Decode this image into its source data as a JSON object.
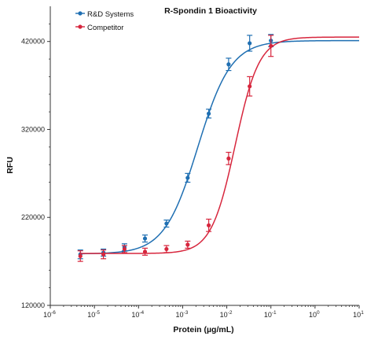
{
  "chart_data": {
    "type": "line",
    "title": "R-Spondin 1 Bioactivity",
    "xlabel": "Protein (µg/mL)",
    "ylabel": "RFU",
    "x_scale": "log",
    "xlim": [
      1e-06,
      10
    ],
    "ylim": [
      120000,
      460000
    ],
    "x_ticks": [
      1e-06,
      1e-05,
      0.0001,
      0.001,
      0.01,
      0.1,
      1,
      10
    ],
    "x_tick_labels": [
      {
        "base": "10",
        "exp": "-6"
      },
      {
        "base": "10",
        "exp": "-5"
      },
      {
        "base": "10",
        "exp": "-4"
      },
      {
        "base": "10",
        "exp": "-3"
      },
      {
        "base": "10",
        "exp": "-2"
      },
      {
        "base": "10",
        "exp": "-1"
      },
      {
        "base": "10",
        "exp": "0"
      },
      {
        "base": "10",
        "exp": "1"
      }
    ],
    "y_ticks": [
      120000,
      220000,
      320000,
      420000
    ],
    "y_tick_labels": [
      "120000",
      "220000",
      "320000",
      "420000"
    ],
    "legend_position": "top-left",
    "series": [
      {
        "name": "R&D Systems",
        "color": "#1f6fb2",
        "x": [
          4.8e-06,
          1.6e-05,
          4.8e-05,
          0.00014,
          0.00043,
          0.0013,
          0.0039,
          0.011,
          0.033,
          0.1
        ],
        "y": [
          178000,
          180000,
          186000,
          196000,
          213000,
          265000,
          338000,
          394000,
          418000,
          421000
        ],
        "err": [
          5000,
          4000,
          4000,
          4000,
          4000,
          5000,
          5000,
          7000,
          9000,
          7000
        ],
        "fit": {
          "bottom": 178500,
          "top": 421000,
          "ec50": 0.0022,
          "hill": 1.15
        }
      },
      {
        "name": "Competitor",
        "color": "#d7263d",
        "x": [
          4.8e-06,
          1.6e-05,
          4.8e-05,
          0.00014,
          0.00043,
          0.0013,
          0.0039,
          0.011,
          0.033,
          0.1
        ],
        "y": [
          176000,
          178000,
          184000,
          181000,
          184000,
          189000,
          211000,
          287000,
          369000,
          415000
        ],
        "err": [
          6000,
          5000,
          4000,
          4000,
          4000,
          4000,
          7000,
          7000,
          11000,
          12000
        ],
        "fit": {
          "bottom": 179000,
          "top": 425000,
          "ec50": 0.0155,
          "hill": 1.6
        }
      }
    ]
  }
}
